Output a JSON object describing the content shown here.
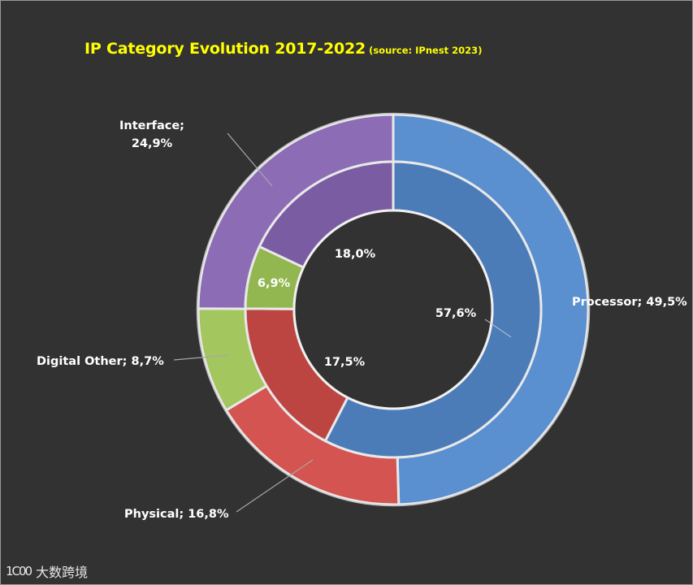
{
  "chart_data": {
    "type": "donut",
    "title": "IP Category Evolution 2017-2022",
    "subtitle": "(source: IPnest  2023)",
    "outer_ring": {
      "slices": [
        {
          "category": "Processor",
          "value": 49.5,
          "label": "Processor; 49,5%",
          "color": "#5a8fd0"
        },
        {
          "category": "Physical",
          "value": 16.8,
          "label": "Physical; 16,8%",
          "color": "#d35450"
        },
        {
          "category": "Digital Other",
          "value": 8.7,
          "label": "Digital Other; 8,7%",
          "color": "#a4c65e"
        },
        {
          "category": "Interface",
          "value": 24.9,
          "label": "Interface; 24,9%",
          "color": "#8c6cb4"
        }
      ]
    },
    "inner_ring": {
      "slices": [
        {
          "category": "Processor",
          "value": 57.6,
          "label": "57,6%",
          "color": "#4b7cb8"
        },
        {
          "category": "Physical",
          "value": 17.5,
          "label": "17,5%",
          "color": "#bd4541"
        },
        {
          "category": "Digital Other",
          "value": 6.9,
          "label": "6,9%",
          "color": "#92b650"
        },
        {
          "category": "Interface",
          "value": 18.0,
          "label": "18,0%",
          "color": "#7a5ca2"
        }
      ]
    }
  },
  "watermark": {
    "mark": "1C00",
    "text": "大数跨境"
  }
}
